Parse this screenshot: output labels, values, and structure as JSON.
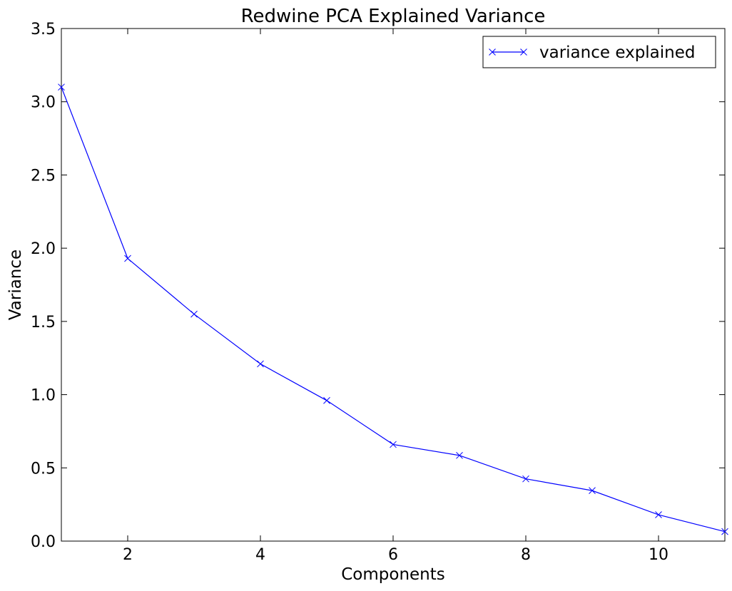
{
  "chart_data": {
    "type": "line",
    "title": "Redwine PCA Explained Variance",
    "xlabel": "Components",
    "ylabel": "Variance",
    "xlim": [
      1,
      11
    ],
    "ylim": [
      0,
      3.5
    ],
    "xticks": [
      2,
      4,
      6,
      8,
      10
    ],
    "yticks": [
      0.0,
      0.5,
      1.0,
      1.5,
      2.0,
      2.5,
      3.0,
      3.5
    ],
    "ytick_labels": [
      "0.0",
      "0.5",
      "1.0",
      "1.5",
      "2.0",
      "2.5",
      "3.0",
      "3.5"
    ],
    "grid": false,
    "legend": {
      "position": "top-right"
    },
    "series": [
      {
        "name": "variance explained",
        "color": "#0000ff",
        "marker": "x",
        "x": [
          1,
          2,
          3,
          4,
          5,
          6,
          7,
          8,
          9,
          10,
          11
        ],
        "y": [
          3.1,
          1.93,
          1.55,
          1.21,
          0.96,
          0.66,
          0.585,
          0.425,
          0.345,
          0.18,
          0.065
        ]
      }
    ]
  }
}
